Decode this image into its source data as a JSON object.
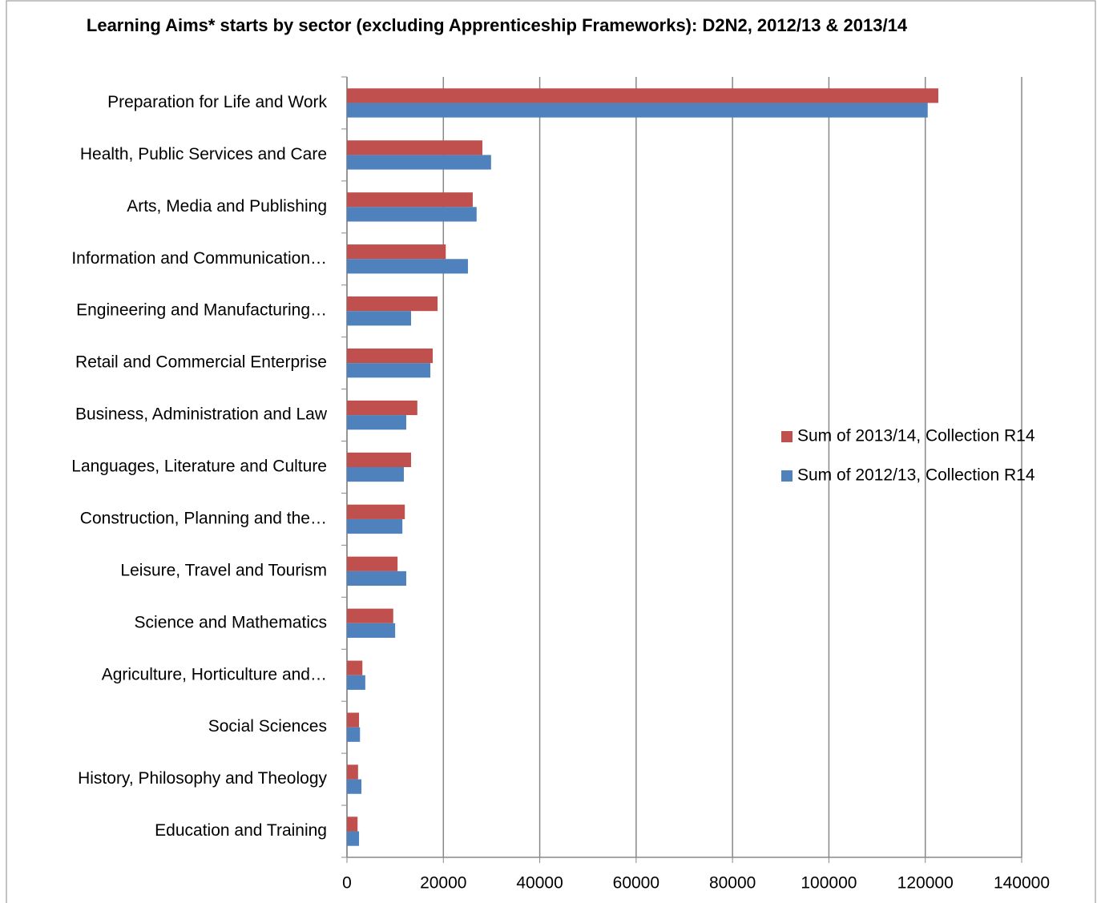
{
  "chart_data": {
    "type": "hbar",
    "title": "Learning Aims* starts by sector (excluding Apprenticeship Frameworks): D2N2, 2012/13 & 2013/14",
    "categories": [
      "Preparation for Life and Work",
      "Health, Public Services and Care",
      "Arts, Media and Publishing",
      "Information and Communication…",
      "Engineering and Manufacturing…",
      "Retail and Commercial Enterprise",
      "Business, Administration and Law",
      "Languages, Literature and Culture",
      "Construction, Planning and the…",
      "Leisure, Travel and Tourism",
      "Science and Mathematics",
      "Agriculture, Horticulture and…",
      "Social Sciences",
      "History, Philosophy and Theology",
      "Education and Training"
    ],
    "series": [
      {
        "name": "Sum of 2013/14, Collection R14",
        "color": "#c0504d",
        "values": [
          122700,
          28100,
          26100,
          20500,
          18800,
          17800,
          14600,
          13300,
          12000,
          10500,
          9600,
          3200,
          2500,
          2300,
          2200
        ]
      },
      {
        "name": "Sum of 2012/13, Collection R14",
        "color": "#4f81bd",
        "values": [
          120500,
          29900,
          26900,
          25100,
          13300,
          17300,
          12300,
          11800,
          11500,
          12300,
          10000,
          3800,
          2700,
          3000,
          2500
        ]
      }
    ],
    "xlim": [
      0,
      140000
    ],
    "xticks": [
      0,
      20000,
      40000,
      60000,
      80000,
      100000,
      120000,
      140000
    ],
    "grid": true,
    "legend": "right"
  }
}
